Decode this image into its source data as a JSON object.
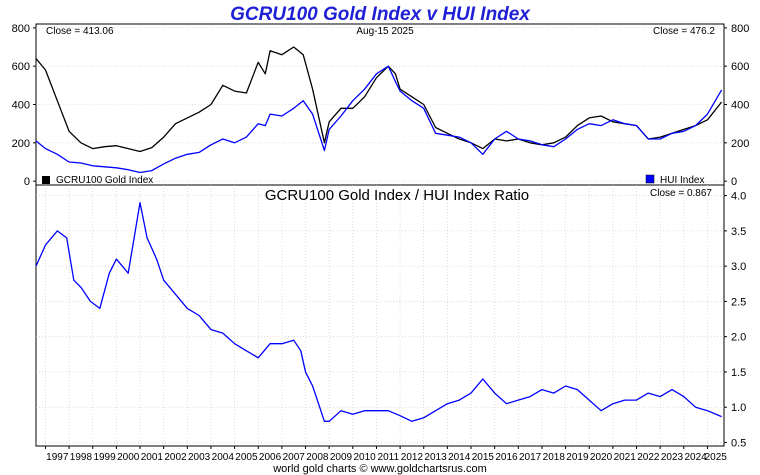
{
  "chart_data": [
    {
      "type": "line",
      "title": "GCRU100 Gold Index v HUI Index",
      "date_label": "Aug-15  2025",
      "left_close_label": "Close = 413.06",
      "right_close_label": "Close = 476.2",
      "ylim": [
        -20,
        820
      ],
      "yticks": [
        0,
        200,
        400,
        600,
        800
      ],
      "grid": true,
      "legend_placement": "bottom",
      "x": [
        1996.6,
        1997.0,
        1997.5,
        1998.0,
        1998.5,
        1999.0,
        1999.5,
        2000.0,
        2000.5,
        2001.0,
        2001.5,
        2002.0,
        2002.5,
        2003.0,
        2003.5,
        2004.0,
        2004.5,
        2005.0,
        2005.5,
        2006.0,
        2006.3,
        2006.5,
        2007.0,
        2007.5,
        2007.9,
        2008.3,
        2008.8,
        2009.0,
        2009.5,
        2010.0,
        2010.5,
        2011.0,
        2011.5,
        2011.8,
        2012.0,
        2012.5,
        2013.0,
        2013.5,
        2014.0,
        2014.5,
        2015.0,
        2015.5,
        2016.0,
        2016.5,
        2017.0,
        2017.5,
        2018.0,
        2018.5,
        2019.0,
        2019.5,
        2020.0,
        2020.5,
        2021.0,
        2021.5,
        2022.0,
        2022.5,
        2023.0,
        2023.5,
        2024.0,
        2024.5,
        2025.0,
        2025.6
      ],
      "series": [
        {
          "name": "GCRU100 Gold Index",
          "color": "#000000",
          "values": [
            640,
            580,
            420,
            260,
            200,
            170,
            180,
            185,
            170,
            155,
            175,
            230,
            300,
            330,
            360,
            400,
            500,
            470,
            460,
            620,
            560,
            680,
            660,
            700,
            660,
            480,
            200,
            310,
            380,
            380,
            440,
            540,
            600,
            560,
            480,
            440,
            400,
            280,
            250,
            220,
            200,
            170,
            220,
            210,
            220,
            200,
            190,
            200,
            230,
            290,
            330,
            340,
            310,
            300,
            290,
            220,
            230,
            250,
            270,
            290,
            320,
            413.06
          ]
        },
        {
          "name": "HUI Index",
          "color": "#0000ff",
          "values": [
            210,
            170,
            140,
            100,
            95,
            80,
            75,
            70,
            60,
            45,
            55,
            90,
            120,
            140,
            150,
            190,
            220,
            200,
            230,
            300,
            290,
            350,
            340,
            380,
            420,
            350,
            160,
            270,
            340,
            420,
            480,
            560,
            600,
            520,
            470,
            420,
            380,
            250,
            240,
            230,
            200,
            140,
            220,
            260,
            220,
            210,
            190,
            180,
            220,
            270,
            300,
            290,
            320,
            300,
            290,
            220,
            220,
            250,
            260,
            290,
            350,
            476.2
          ]
        }
      ]
    },
    {
      "type": "line",
      "title": "GCRU100 Gold Index  /  HUI Index Ratio",
      "close_label": "Close = 0.867",
      "ylim": [
        0.45,
        4.15
      ],
      "yticks": [
        0.5,
        1.0,
        1.5,
        2.0,
        2.5,
        3.0,
        3.5,
        4.0
      ],
      "xlim": [
        1996.6,
        2025.7
      ],
      "xtick_labels": [
        "1997",
        "1998",
        "1999",
        "2000",
        "2001",
        "2002",
        "2003",
        "2004",
        "2005",
        "2006",
        "2007",
        "2008",
        "2009",
        "2010",
        "2011",
        "2012",
        "2013",
        "2014",
        "2015",
        "2016",
        "2017",
        "2018",
        "2019",
        "2020",
        "2021",
        "2022",
        "2023",
        "2024",
        "2025"
      ],
      "grid": true,
      "x": [
        1996.6,
        1997.0,
        1997.5,
        1997.9,
        1998.2,
        1998.5,
        1998.9,
        1999.3,
        1999.7,
        2000.0,
        2000.5,
        2000.8,
        2001.0,
        2001.3,
        2001.7,
        2002.0,
        2002.5,
        2003.0,
        2003.5,
        2004.0,
        2004.5,
        2005.0,
        2005.5,
        2006.0,
        2006.5,
        2007.0,
        2007.5,
        2007.8,
        2008.0,
        2008.3,
        2008.6,
        2008.8,
        2009.0,
        2009.5,
        2010.0,
        2010.5,
        2011.0,
        2011.5,
        2012.0,
        2012.5,
        2013.0,
        2013.5,
        2014.0,
        2014.5,
        2015.0,
        2015.5,
        2016.0,
        2016.5,
        2017.0,
        2017.5,
        2018.0,
        2018.5,
        2019.0,
        2019.5,
        2020.0,
        2020.5,
        2021.0,
        2021.5,
        2022.0,
        2022.5,
        2023.0,
        2023.5,
        2024.0,
        2024.5,
        2025.0,
        2025.6
      ],
      "series": [
        {
          "name": "Ratio",
          "color": "#0000ff",
          "values": [
            3.0,
            3.3,
            3.5,
            3.4,
            2.8,
            2.7,
            2.5,
            2.4,
            2.9,
            3.1,
            2.9,
            3.5,
            3.9,
            3.4,
            3.1,
            2.8,
            2.6,
            2.4,
            2.3,
            2.1,
            2.05,
            1.9,
            1.8,
            1.7,
            1.9,
            1.9,
            1.95,
            1.8,
            1.5,
            1.3,
            1.0,
            0.8,
            0.8,
            0.95,
            0.9,
            0.95,
            0.95,
            0.95,
            0.88,
            0.8,
            0.85,
            0.95,
            1.05,
            1.1,
            1.2,
            1.4,
            1.2,
            1.05,
            1.1,
            1.15,
            1.25,
            1.2,
            1.3,
            1.25,
            1.1,
            0.95,
            1.05,
            1.1,
            1.1,
            1.2,
            1.15,
            1.25,
            1.15,
            1.0,
            0.95,
            0.867
          ]
        }
      ]
    }
  ],
  "footer": "world gold charts © www.goldchartsrus.com"
}
